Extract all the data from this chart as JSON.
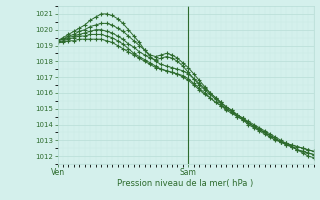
{
  "title": "Pression niveau de la mer( hPa )",
  "xlabel_ven": "Ven",
  "xlabel_sam": "Sam",
  "ylim": [
    1011.5,
    1021.5
  ],
  "yticks": [
    1012,
    1013,
    1014,
    1015,
    1016,
    1017,
    1018,
    1019,
    1020,
    1021
  ],
  "bg_color": "#d4f0ec",
  "grid_major_color": "#b8ddd6",
  "grid_minor_color": "#c8eae4",
  "line_color": "#2d6b2d",
  "marker": "+",
  "total_hours": 48,
  "line1": [
    1019.3,
    1019.5,
    1019.7,
    1019.9,
    1020.1,
    1020.3,
    1020.6,
    1020.8,
    1021.0,
    1021.0,
    1020.9,
    1020.7,
    1020.4,
    1020.0,
    1019.6,
    1019.2,
    1018.7,
    1018.3,
    1018.0,
    1017.8,
    1017.7,
    1017.6,
    1017.5,
    1017.4,
    1017.2,
    1016.9,
    1016.6,
    1016.3,
    1016.0,
    1015.7,
    1015.4,
    1015.1,
    1014.9,
    1014.6,
    1014.4,
    1014.1,
    1013.9,
    1013.7,
    1013.5,
    1013.3,
    1013.1,
    1012.9,
    1012.7,
    1012.6,
    1012.4,
    1012.3,
    1012.2,
    1012.1
  ],
  "line2": [
    1019.3,
    1019.4,
    1019.6,
    1019.7,
    1019.9,
    1020.0,
    1020.2,
    1020.3,
    1020.4,
    1020.4,
    1020.3,
    1020.1,
    1019.9,
    1019.6,
    1019.3,
    1019.0,
    1018.7,
    1018.4,
    1018.3,
    1018.4,
    1018.5,
    1018.4,
    1018.2,
    1017.9,
    1017.6,
    1017.2,
    1016.8,
    1016.4,
    1016.0,
    1015.7,
    1015.4,
    1015.1,
    1014.9,
    1014.6,
    1014.4,
    1014.1,
    1013.9,
    1013.7,
    1013.5,
    1013.3,
    1013.1,
    1012.9,
    1012.8,
    1012.7,
    1012.6,
    1012.5,
    1012.4,
    1012.3
  ],
  "line3": [
    1019.3,
    1019.4,
    1019.5,
    1019.6,
    1019.7,
    1019.8,
    1019.9,
    1020.0,
    1020.0,
    1019.9,
    1019.8,
    1019.6,
    1019.4,
    1019.1,
    1018.9,
    1018.6,
    1018.4,
    1018.2,
    1018.1,
    1018.2,
    1018.3,
    1018.2,
    1018.0,
    1017.7,
    1017.3,
    1016.9,
    1016.5,
    1016.2,
    1015.9,
    1015.6,
    1015.3,
    1015.0,
    1014.8,
    1014.5,
    1014.3,
    1014.0,
    1013.8,
    1013.6,
    1013.4,
    1013.2,
    1013.0,
    1012.9,
    1012.8,
    1012.7,
    1012.6,
    1012.5,
    1012.4,
    1012.3
  ],
  "line4": [
    1019.2,
    1019.3,
    1019.4,
    1019.5,
    1019.6,
    1019.6,
    1019.7,
    1019.7,
    1019.7,
    1019.6,
    1019.5,
    1019.3,
    1019.1,
    1018.8,
    1018.5,
    1018.3,
    1018.1,
    1017.9,
    1017.7,
    1017.5,
    1017.4,
    1017.3,
    1017.2,
    1017.1,
    1016.9,
    1016.6,
    1016.3,
    1016.0,
    1015.7,
    1015.4,
    1015.2,
    1014.9,
    1014.7,
    1014.5,
    1014.3,
    1014.1,
    1013.9,
    1013.7,
    1013.5,
    1013.3,
    1013.1,
    1012.9,
    1012.7,
    1012.6,
    1012.4,
    1012.3,
    1012.2,
    1012.1
  ],
  "line5": [
    1019.2,
    1019.2,
    1019.3,
    1019.3,
    1019.4,
    1019.4,
    1019.4,
    1019.4,
    1019.4,
    1019.3,
    1019.2,
    1019.0,
    1018.8,
    1018.6,
    1018.4,
    1018.2,
    1018.0,
    1017.8,
    1017.6,
    1017.5,
    1017.4,
    1017.3,
    1017.2,
    1017.0,
    1016.8,
    1016.5,
    1016.2,
    1015.9,
    1015.7,
    1015.4,
    1015.2,
    1015.0,
    1014.8,
    1014.6,
    1014.4,
    1014.2,
    1014.0,
    1013.8,
    1013.6,
    1013.4,
    1013.2,
    1013.0,
    1012.8,
    1012.6,
    1012.4,
    1012.2,
    1012.0,
    1011.9
  ],
  "vline_x": 24
}
